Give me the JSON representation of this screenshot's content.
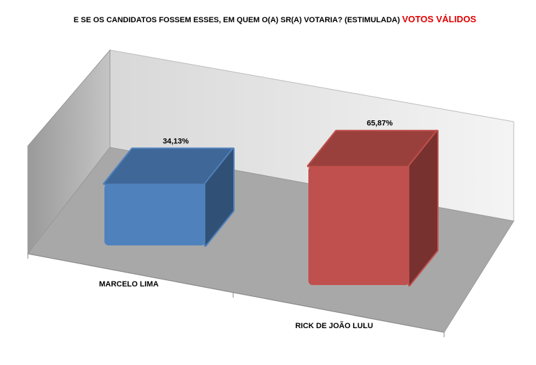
{
  "chart_data": {
    "type": "bar3d",
    "title": "E SE OS CANDIDATOS FOSSEM ESSES, EM QUEM O(A) SR(A) VOTARIA? (ESTIMULADA)",
    "title_emphasis": "VOTOS VÁLIDOS",
    "categories": [
      "MARCELO LIMA",
      "RICK DE JOÃO LULU"
    ],
    "values": [
      34.13,
      65.87
    ],
    "value_labels": [
      "34,13%",
      "65,87%"
    ],
    "colors": [
      "#4f81bd",
      "#c0504d"
    ]
  }
}
